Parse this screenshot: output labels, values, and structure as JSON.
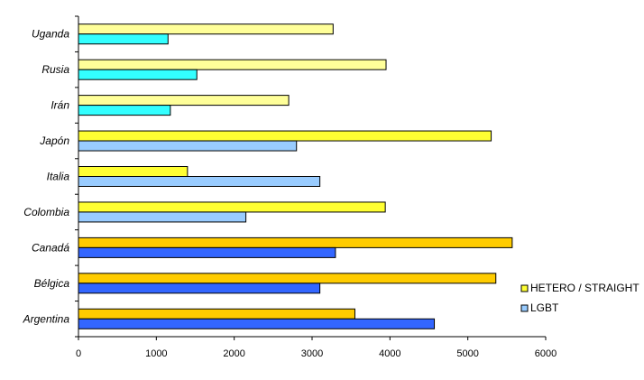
{
  "chart_data": {
    "type": "bar",
    "orientation": "horizontal",
    "categories": [
      "Uganda",
      "Rusia",
      "Irán",
      "Japón",
      "Italia",
      "Colombia",
      "Canadá",
      "Bélgica",
      "Argentina"
    ],
    "series": [
      {
        "name": "HETERO / STRAIGHT",
        "values": [
          3270,
          3950,
          2700,
          5300,
          1400,
          3940,
          5570,
          5360,
          3550
        ],
        "colors": [
          "#ffff99",
          "#ffff99",
          "#ffff99",
          "#ffff33",
          "#ffff33",
          "#ffff33",
          "#ffcc00",
          "#ffcc00",
          "#ffcc00"
        ]
      },
      {
        "name": "LGBT",
        "values": [
          1150,
          1520,
          1180,
          2800,
          3100,
          2150,
          3300,
          3100,
          4570
        ],
        "colors": [
          "#33ffff",
          "#33ffff",
          "#33ffff",
          "#99ccff",
          "#99ccff",
          "#99ccff",
          "#3366ff",
          "#3366ff",
          "#3366ff"
        ]
      }
    ],
    "xlim": [
      0,
      6000
    ],
    "xticks": [
      "0",
      "1000",
      "2000",
      "3000",
      "4000",
      "5000",
      "6000"
    ],
    "grid": false,
    "legend": {
      "placement": "right",
      "entries": [
        {
          "label": "HETERO / STRAIGHT",
          "color": "#ffff33"
        },
        {
          "label": "LGBT",
          "color": "#99ccff"
        }
      ]
    }
  }
}
